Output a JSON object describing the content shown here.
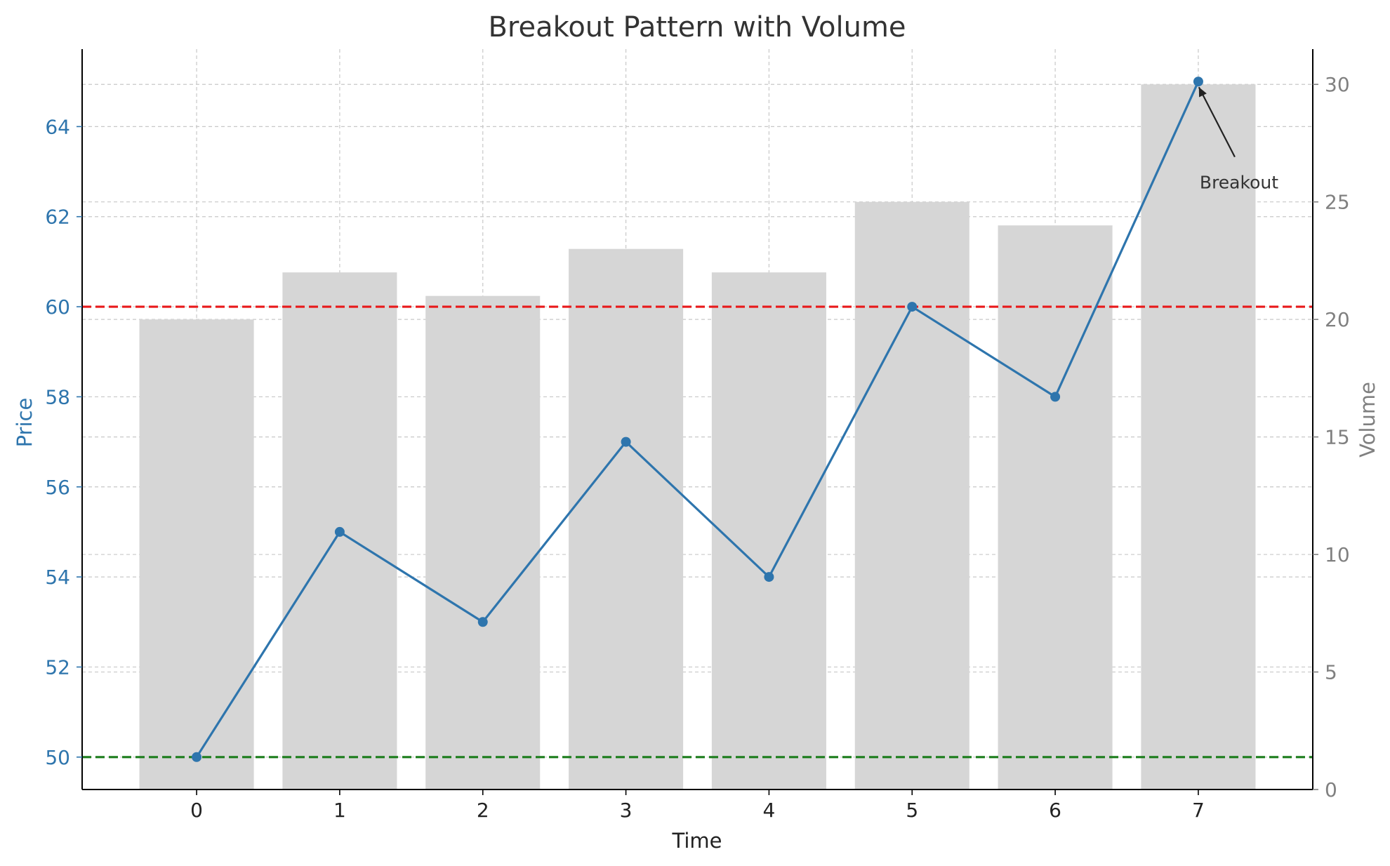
{
  "chart_data": {
    "type": "bar",
    "title": "Breakout Pattern with Volume",
    "xlabel": "Time",
    "ylabel_left": "Price",
    "ylabel_right": "Volume",
    "x": [
      0,
      1,
      2,
      3,
      4,
      5,
      6,
      7
    ],
    "price": {
      "name": "Price",
      "type": "line",
      "axis": "left",
      "values": [
        50,
        55,
        53,
        57,
        54,
        60,
        58,
        65
      ],
      "color": "#2e75ad"
    },
    "volume": {
      "name": "Volume",
      "type": "bar",
      "axis": "right",
      "values": [
        20,
        22,
        21,
        23,
        22,
        25,
        24,
        30
      ],
      "color": "#d6d6d6"
    },
    "reference_lines": [
      {
        "value": 60,
        "axis": "left",
        "color": "#e8191b",
        "style": "dashed"
      },
      {
        "value": 50,
        "axis": "left",
        "color": "#1c7d1c",
        "style": "dashed"
      }
    ],
    "annotation": {
      "text": "Breakout",
      "x": 7,
      "y": 65
    },
    "xlim": [
      -0.8,
      7.8
    ],
    "ylim_left": [
      49.28,
      65.72
    ],
    "ylim_right": [
      0,
      31.5
    ],
    "yticks_left": [
      50,
      52,
      54,
      56,
      58,
      60,
      62,
      64
    ],
    "yticks_right": [
      0,
      5,
      10,
      15,
      20,
      25,
      30
    ],
    "grid": true,
    "colors": {
      "left_axis_text": "#2e75ad",
      "right_axis_text": "#808080",
      "title_text": "#333333",
      "grid": "#c8c8c8"
    }
  }
}
